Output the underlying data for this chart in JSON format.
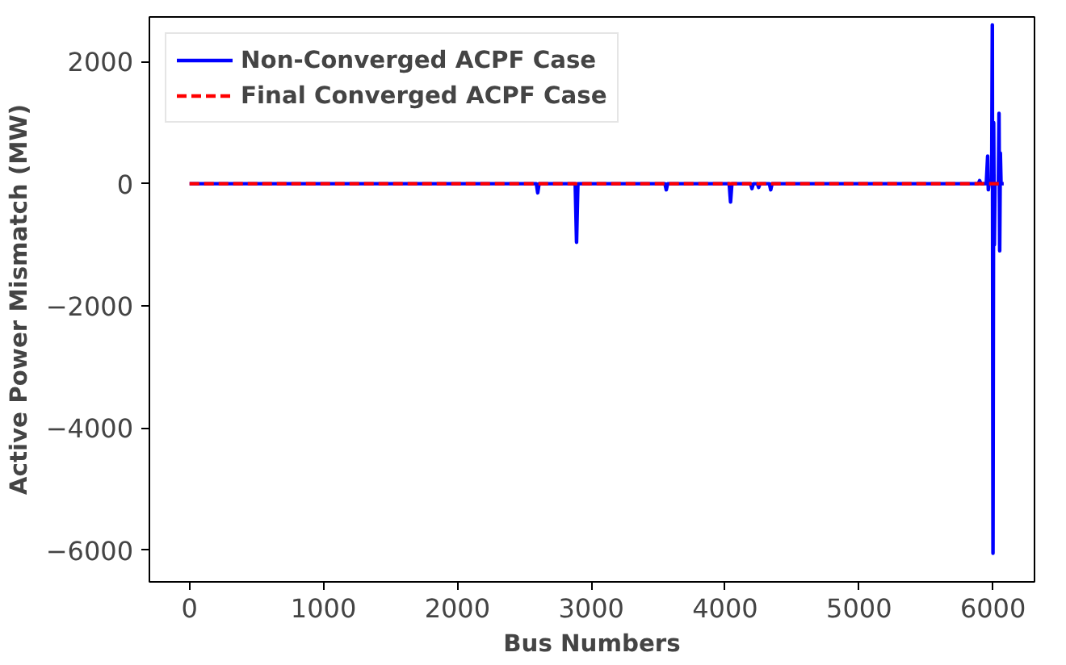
{
  "chart_data": {
    "type": "line",
    "xlabel": "Bus Numbers",
    "ylabel": "Active Power Mismatch (MW)",
    "xlim": [
      -300,
      6310
    ],
    "ylim": [
      -6520,
      2730
    ],
    "xticks": [
      0,
      1000,
      2000,
      3000,
      4000,
      5000,
      6000
    ],
    "yticks": [
      {
        "value": -6000,
        "label": "−6000"
      },
      {
        "value": -4000,
        "label": "−4000"
      },
      {
        "value": -2000,
        "label": "−2000"
      },
      0,
      2000
    ],
    "grid": false,
    "legend": "top left",
    "series": [
      {
        "name": "Non-Converged ACPF Case",
        "color": "#0000ff",
        "line_style": "solid",
        "x": [
          0,
          2590,
          2600,
          2610,
          2880,
          2890,
          2900,
          3550,
          3560,
          3570,
          4030,
          4040,
          4050,
          4190,
          4200,
          4210,
          4240,
          4250,
          4260,
          4330,
          4340,
          4350,
          5890,
          5900,
          5910,
          5950,
          5960,
          5965,
          5970,
          5990,
          5995,
          6000,
          6005,
          6010,
          6015,
          6040,
          6045,
          6050,
          6055,
          6060,
          6080
        ],
        "values": [
          0,
          0,
          -150,
          0,
          0,
          -960,
          0,
          0,
          -100,
          0,
          0,
          -300,
          0,
          0,
          -80,
          0,
          0,
          -60,
          0,
          0,
          -100,
          0,
          0,
          50,
          0,
          0,
          450,
          -100,
          0,
          0,
          2600,
          -6050,
          1000,
          -1000,
          0,
          0,
          1150,
          -1100,
          500,
          0,
          0
        ]
      },
      {
        "name": "Final Converged ACPF Case",
        "color": "#ff0000",
        "line_style": "dashed",
        "x": [
          0,
          6080
        ],
        "values": [
          0,
          0
        ]
      }
    ]
  }
}
